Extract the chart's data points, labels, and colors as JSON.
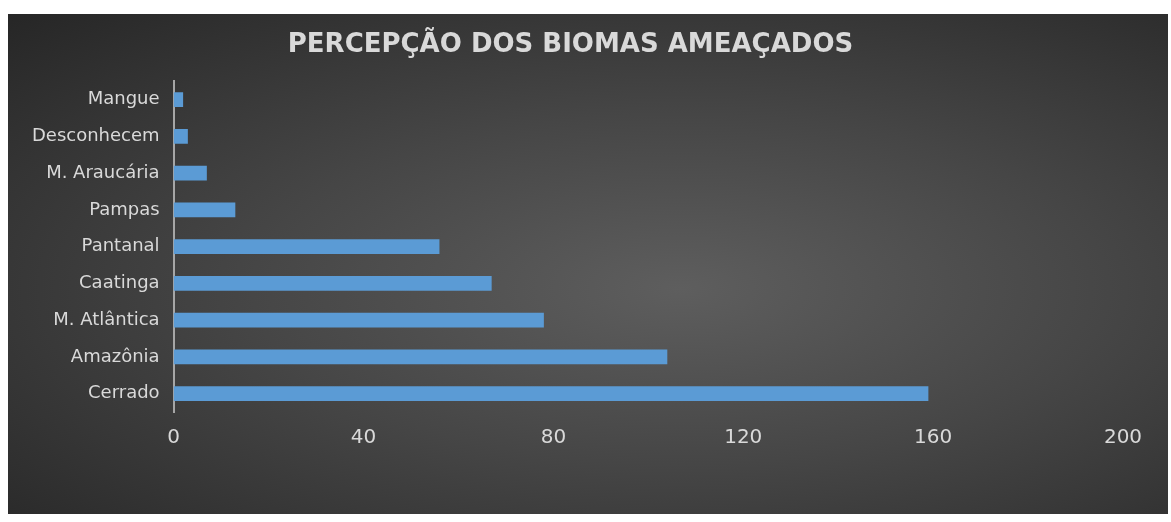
{
  "chart_data": {
    "type": "bar",
    "orientation": "horizontal",
    "title": "PERCEPÇÃO DOS BIOMAS AMEAÇADOS",
    "categories": [
      "Mangue",
      "Desconhecem",
      "M. Araucária",
      "Pampas",
      "Pantanal",
      "Caatinga",
      "M. Atlântica",
      "Amazônia",
      "Cerrado"
    ],
    "values": [
      2,
      3,
      7,
      13,
      56,
      67,
      78,
      104,
      159
    ],
    "color": "#5b9bd5",
    "xlim": [
      0,
      200
    ],
    "xticks": [
      0,
      40,
      80,
      120,
      160,
      200
    ],
    "grid": false,
    "legend": false
  }
}
